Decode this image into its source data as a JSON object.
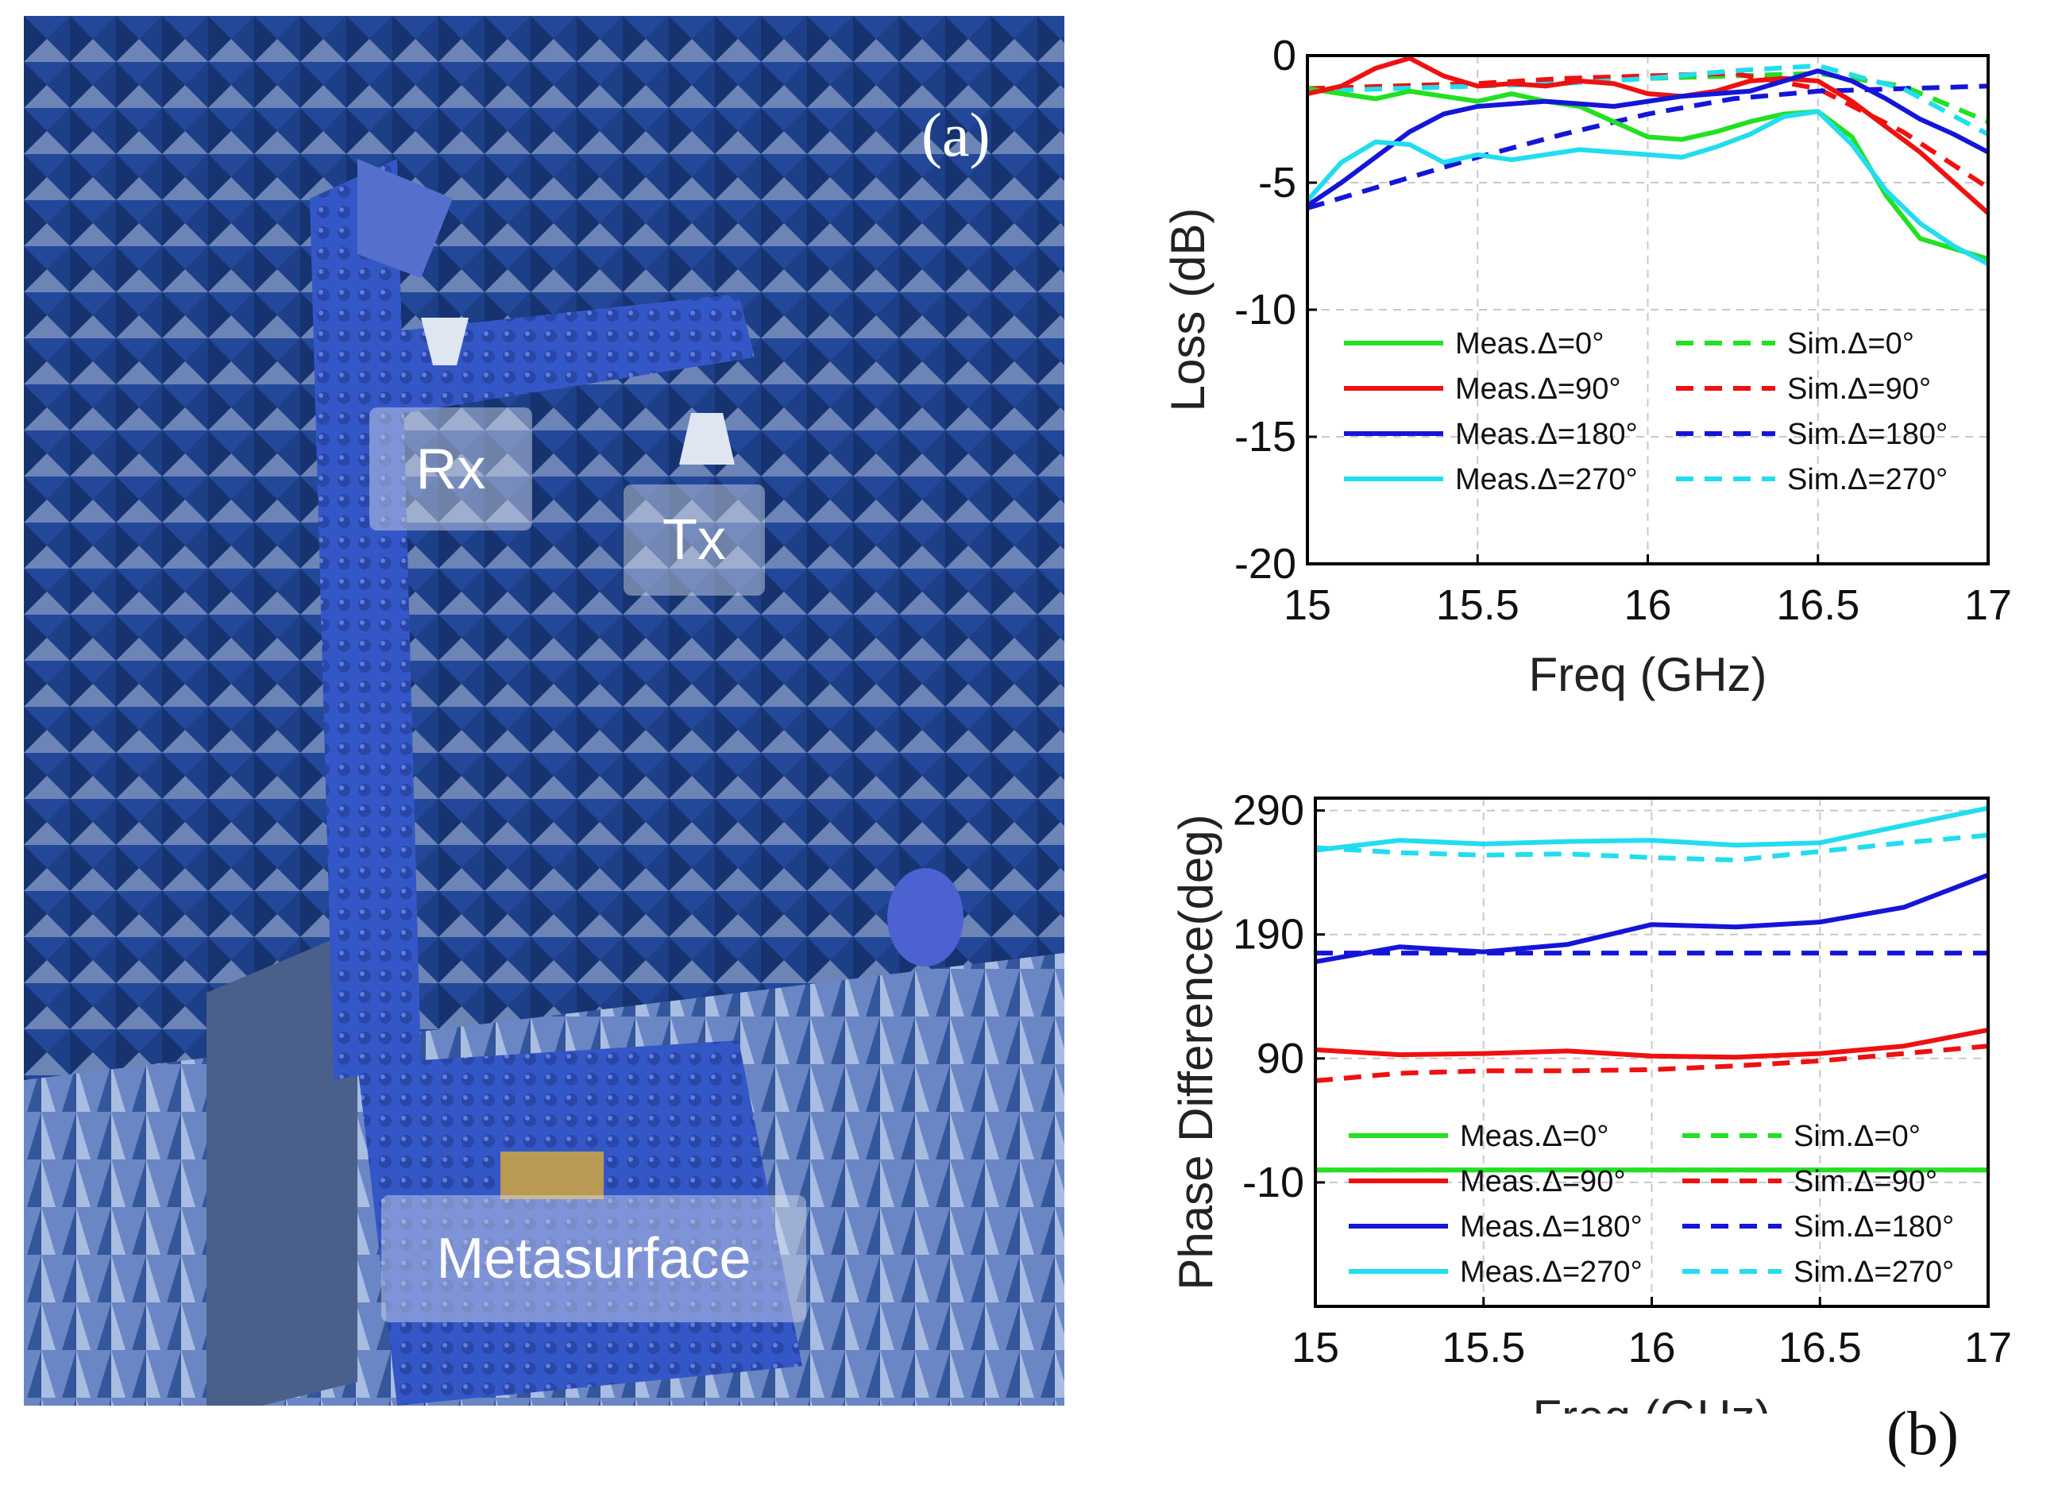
{
  "panels": {
    "a_label": "(a)",
    "b_label": "(b)"
  },
  "photo": {
    "labels": {
      "rx": "Rx",
      "tx": "Tx",
      "metasurface": "Metasurface"
    },
    "colors": {
      "wall": "#1b3f86",
      "absorber": "#2e55b4",
      "floor": "#5c78b8",
      "foam": "#3b5fd0"
    }
  },
  "chart_data": [
    {
      "type": "line",
      "title": "",
      "xlabel": "Freq (GHz)",
      "ylabel": "Loss (dB)",
      "xlim": [
        15,
        17
      ],
      "ylim": [
        -20,
        0
      ],
      "xticks": [
        15,
        15.5,
        16,
        16.5,
        17
      ],
      "xtick_labels": [
        "15",
        "15.5",
        "16",
        "16.5",
        "17"
      ],
      "yticks": [
        0,
        -5,
        -10,
        -15,
        -20
      ],
      "ytick_labels": [
        "0",
        "-5",
        "-10",
        "-15",
        "-20"
      ],
      "grid": true,
      "legend_position": "lower-center",
      "series": [
        {
          "name": "Meas.Δ=0°",
          "style": "solid",
          "color": "#22e022",
          "x": [
            15,
            15.1,
            15.2,
            15.3,
            15.4,
            15.5,
            15.6,
            15.7,
            15.8,
            15.9,
            16,
            16.1,
            16.2,
            16.3,
            16.4,
            16.5,
            16.6,
            16.7,
            16.8,
            16.9,
            17
          ],
          "y": [
            -1.3,
            -1.5,
            -1.7,
            -1.4,
            -1.6,
            -1.8,
            -1.5,
            -1.8,
            -2.0,
            -2.6,
            -3.2,
            -3.3,
            -3.0,
            -2.6,
            -2.3,
            -2.2,
            -3.2,
            -5.5,
            -7.2,
            -7.6,
            -8.0
          ]
        },
        {
          "name": "Meas.Δ=90°",
          "style": "solid",
          "color": "#ee1111",
          "x": [
            15,
            15.1,
            15.2,
            15.3,
            15.4,
            15.5,
            15.6,
            15.7,
            15.8,
            15.9,
            16,
            16.1,
            16.2,
            16.3,
            16.4,
            16.5,
            16.6,
            16.7,
            16.8,
            16.9,
            17
          ],
          "y": [
            -1.5,
            -1.2,
            -0.5,
            -0.1,
            -0.8,
            -1.2,
            -1.1,
            -1.2,
            -1.0,
            -1.1,
            -1.5,
            -1.6,
            -1.4,
            -1.0,
            -0.9,
            -1.0,
            -1.8,
            -2.8,
            -3.8,
            -5.0,
            -6.2
          ]
        },
        {
          "name": "Meas.Δ=180°",
          "style": "solid",
          "color": "#1515d8",
          "x": [
            15,
            15.1,
            15.2,
            15.3,
            15.4,
            15.5,
            15.6,
            15.7,
            15.8,
            15.9,
            16,
            16.1,
            16.2,
            16.3,
            16.4,
            16.5,
            16.6,
            16.7,
            16.8,
            16.9,
            17
          ],
          "y": [
            -5.9,
            -5.0,
            -4.0,
            -3.0,
            -2.3,
            -2.0,
            -1.9,
            -1.8,
            -1.9,
            -2.0,
            -1.8,
            -1.6,
            -1.5,
            -1.4,
            -1.0,
            -0.6,
            -1.0,
            -1.7,
            -2.5,
            -3.1,
            -3.8
          ]
        },
        {
          "name": "Meas.Δ=270°",
          "style": "solid",
          "color": "#22ddee",
          "x": [
            15,
            15.1,
            15.2,
            15.3,
            15.4,
            15.5,
            15.6,
            15.7,
            15.8,
            15.9,
            16,
            16.1,
            16.2,
            16.3,
            16.4,
            16.5,
            16.6,
            16.7,
            16.8,
            16.9,
            17
          ],
          "y": [
            -5.7,
            -4.2,
            -3.4,
            -3.5,
            -4.2,
            -3.9,
            -4.1,
            -3.9,
            -3.7,
            -3.8,
            -3.9,
            -4.0,
            -3.6,
            -3.1,
            -2.4,
            -2.2,
            -3.5,
            -5.3,
            -6.6,
            -7.5,
            -8.2
          ]
        },
        {
          "name": "Sim.Δ=0°",
          "style": "dashed",
          "color": "#22e022",
          "x": [
            15,
            15.25,
            15.5,
            15.75,
            16,
            16.25,
            16.5,
            16.75,
            17
          ],
          "y": [
            -1.3,
            -1.2,
            -1.1,
            -1.0,
            -0.9,
            -0.8,
            -0.7,
            -1.2,
            -2.6
          ]
        },
        {
          "name": "Sim.Δ=90°",
          "style": "dashed",
          "color": "#ee1111",
          "x": [
            15,
            15.25,
            15.5,
            15.75,
            16,
            16.25,
            16.5,
            16.75,
            17
          ],
          "y": [
            -1.3,
            -1.2,
            -1.1,
            -0.9,
            -0.8,
            -0.7,
            -1.3,
            -3.0,
            -5.2
          ]
        },
        {
          "name": "Sim.Δ=180°",
          "style": "dashed",
          "color": "#1515d8",
          "x": [
            15,
            15.25,
            15.5,
            15.75,
            16,
            16.25,
            16.5,
            16.75,
            17
          ],
          "y": [
            -6.0,
            -5.0,
            -4.0,
            -3.1,
            -2.3,
            -1.7,
            -1.4,
            -1.3,
            -1.2
          ]
        },
        {
          "name": "Sim.Δ=270°",
          "style": "dashed",
          "color": "#22ddee",
          "x": [
            15,
            15.25,
            15.5,
            15.75,
            16,
            16.25,
            16.5,
            16.75,
            17
          ],
          "y": [
            -1.4,
            -1.3,
            -1.2,
            -1.1,
            -0.9,
            -0.6,
            -0.4,
            -1.3,
            -3.1
          ]
        }
      ]
    },
    {
      "type": "line",
      "title": "",
      "xlabel": "Freq (GHz)",
      "ylabel": "Phase Difference(deg)",
      "xlim": [
        15,
        17
      ],
      "ylim": [
        -110,
        300
      ],
      "xticks": [
        15,
        15.5,
        16,
        16.5,
        17
      ],
      "xtick_labels": [
        "15",
        "15.5",
        "16",
        "16.5",
        "17"
      ],
      "yticks": [
        290,
        190,
        90,
        -10
      ],
      "ytick_labels": [
        "290",
        "190",
        "90",
        "-10"
      ],
      "grid": true,
      "legend_position": "lower-center",
      "series": [
        {
          "name": "Meas.Δ=0°",
          "style": "solid",
          "color": "#22e022",
          "x": [
            15,
            17
          ],
          "y": [
            0,
            0
          ]
        },
        {
          "name": "Meas.Δ=90°",
          "style": "solid",
          "color": "#ee1111",
          "x": [
            15,
            15.25,
            15.5,
            15.75,
            16,
            16.25,
            16.5,
            16.75,
            17
          ],
          "y": [
            97,
            93,
            94,
            96,
            92,
            91,
            94,
            100,
            113
          ]
        },
        {
          "name": "Meas.Δ=180°",
          "style": "solid",
          "color": "#1515d8",
          "x": [
            15,
            15.25,
            15.5,
            15.75,
            16,
            16.25,
            16.5,
            16.75,
            17
          ],
          "y": [
            168,
            180,
            176,
            182,
            198,
            196,
            200,
            212,
            238
          ]
        },
        {
          "name": "Meas.Δ=270°",
          "style": "solid",
          "color": "#22ddee",
          "x": [
            15,
            15.25,
            15.5,
            15.75,
            16,
            16.25,
            16.5,
            16.75,
            17
          ],
          "y": [
            258,
            266,
            263,
            265,
            266,
            262,
            264,
            278,
            292
          ]
        },
        {
          "name": "Sim.Δ=0°",
          "style": "dashed",
          "color": "#22e022",
          "x": [
            15,
            17
          ],
          "y": [
            0,
            0
          ]
        },
        {
          "name": "Sim.Δ=90°",
          "style": "dashed",
          "color": "#ee1111",
          "x": [
            15,
            15.25,
            15.5,
            15.75,
            16,
            16.25,
            16.5,
            16.75,
            17
          ],
          "y": [
            72,
            78,
            80,
            80,
            81,
            84,
            88,
            94,
            100
          ]
        },
        {
          "name": "Sim.Δ=180°",
          "style": "dashed",
          "color": "#1515d8",
          "x": [
            15,
            17
          ],
          "y": [
            175,
            175
          ]
        },
        {
          "name": "Sim.Δ=270°",
          "style": "dashed",
          "color": "#22ddee",
          "x": [
            15,
            15.25,
            15.5,
            15.75,
            16,
            16.25,
            16.5,
            16.75,
            17
          ],
          "y": [
            260,
            256,
            254,
            255,
            252,
            250,
            257,
            264,
            270
          ]
        }
      ]
    }
  ]
}
